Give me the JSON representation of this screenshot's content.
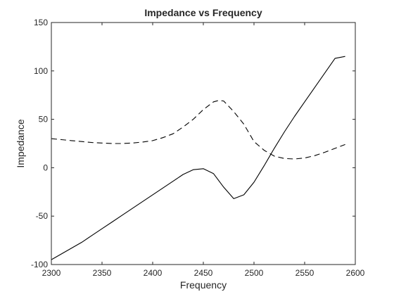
{
  "chart_data": {
    "type": "line",
    "title": "Impedance vs Frequency",
    "xlabel": "Frequency",
    "ylabel": "Impedance",
    "xlim": [
      2300,
      2600
    ],
    "ylim": [
      -100,
      150
    ],
    "xticks": [
      2300,
      2350,
      2400,
      2450,
      2500,
      2550,
      2600
    ],
    "yticks": [
      -100,
      -50,
      0,
      50,
      100,
      150
    ],
    "grid": false,
    "legend": "none",
    "colors": {
      "axes": "#262626",
      "series": "#000000",
      "background": "#ffffff"
    },
    "series": [
      {
        "style": "solid",
        "x": [
          2300,
          2310,
          2320,
          2330,
          2340,
          2350,
          2360,
          2370,
          2380,
          2390,
          2400,
          2410,
          2420,
          2430,
          2440,
          2450,
          2460,
          2470,
          2480,
          2490,
          2500,
          2510,
          2520,
          2530,
          2540,
          2550,
          2560,
          2570,
          2580,
          2590
        ],
        "y": [
          -95,
          -89,
          -83,
          -77,
          -70,
          -63,
          -56,
          -49,
          -42,
          -35,
          -28,
          -21,
          -14,
          -7,
          -2,
          -1,
          -6,
          -20,
          -32,
          -28,
          -15,
          2,
          20,
          37,
          53,
          68,
          83,
          98,
          113,
          115
        ]
      },
      {
        "style": "dashed",
        "x": [
          2300,
          2310,
          2320,
          2330,
          2340,
          2350,
          2360,
          2370,
          2380,
          2390,
          2400,
          2410,
          2420,
          2430,
          2440,
          2450,
          2460,
          2465,
          2470,
          2480,
          2490,
          2500,
          2510,
          2520,
          2530,
          2540,
          2550,
          2560,
          2570,
          2580,
          2590
        ],
        "y": [
          30,
          29,
          28,
          27,
          26,
          25.5,
          25,
          25,
          25.5,
          26.5,
          28,
          31,
          35,
          42,
          50,
          60,
          68,
          69.5,
          69,
          58,
          45,
          27,
          18,
          12,
          9.5,
          9,
          10,
          12.5,
          16,
          20,
          24
        ]
      }
    ]
  }
}
